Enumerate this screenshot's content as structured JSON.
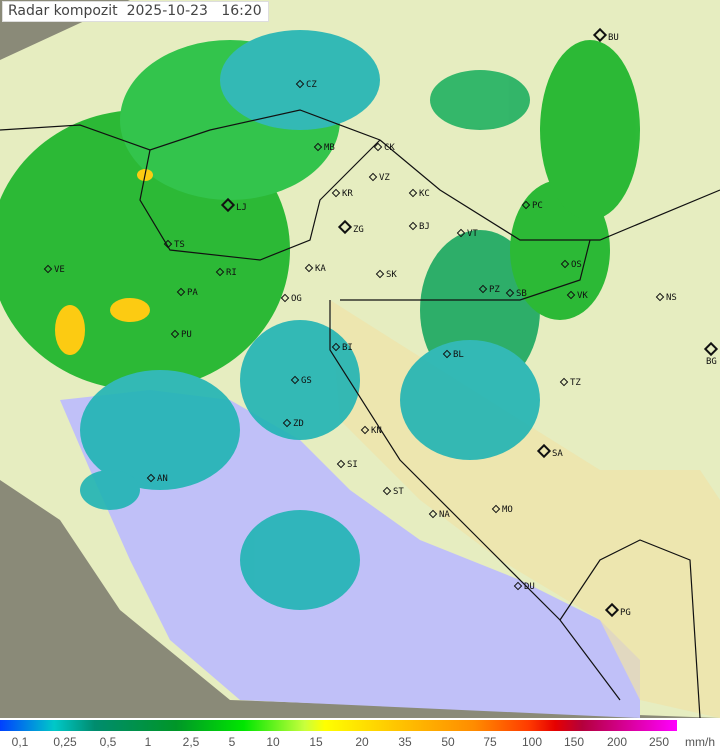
{
  "header": {
    "title": "Radar kompozit",
    "date": "2025-10-23",
    "time": "16:20"
  },
  "colors": {
    "sea": "#c0c0f8",
    "land": "#e6edc0",
    "outside": "#8a8a78",
    "rain_light": "#20b4b4",
    "rain_medium": "#18b428",
    "rain_heavy": "#ffc800"
  },
  "cities": [
    "BU",
    "CZ",
    "MB",
    "CK",
    "VZ",
    "KR",
    "KC",
    "PC",
    "LJ",
    "ZG",
    "BJ",
    "TS",
    "VT",
    "VE",
    "RI",
    "KA",
    "SK",
    "OS",
    "PA",
    "OG",
    "PZ",
    "SB",
    "VK",
    "NS",
    "PU",
    "BI",
    "BL",
    "BG",
    "GS",
    "TZ",
    "ZD",
    "KN",
    "SA",
    "AN",
    "SI",
    "ST",
    "MO",
    "NA",
    "DU",
    "PG"
  ],
  "legend": {
    "labels": [
      "0,1",
      "0,25",
      "0,5",
      "1",
      "2,5",
      "5",
      "10",
      "15",
      "20",
      "35",
      "50",
      "75",
      "100",
      "150",
      "200",
      "250"
    ],
    "unit": "mm/h"
  }
}
